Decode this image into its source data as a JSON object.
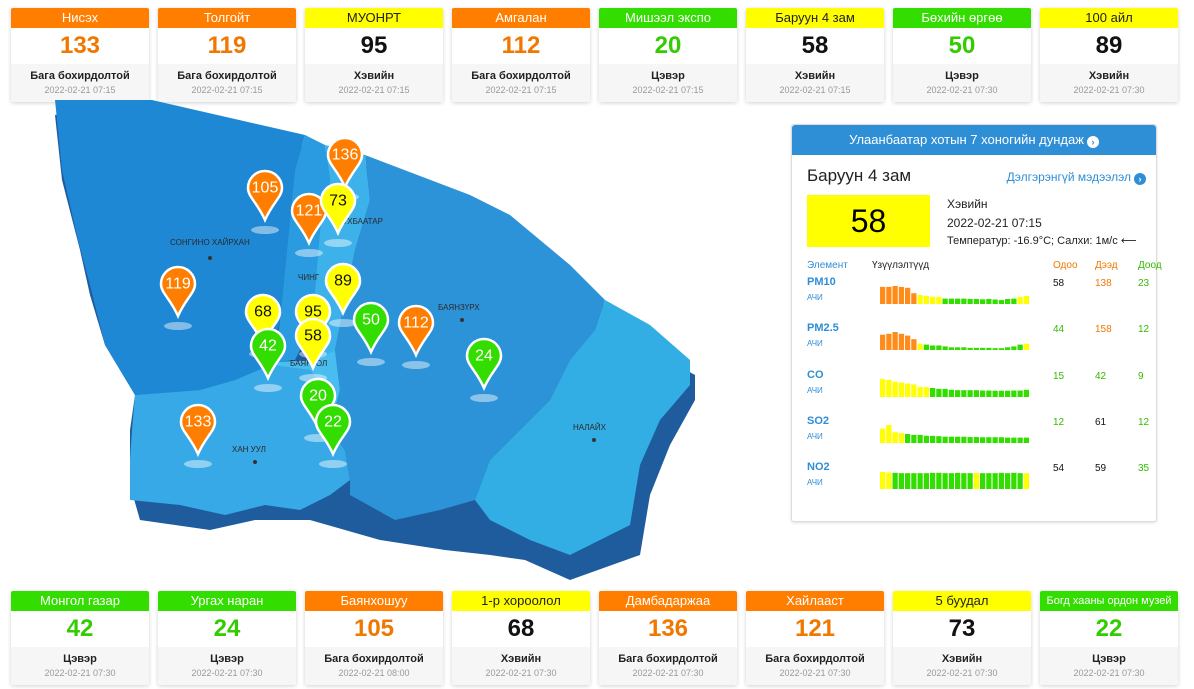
{
  "colors": {
    "good": "#33dd00",
    "moderate": "#ffff00",
    "unhealthy_sensitive": "#ff7e00",
    "accent": "#2e8ed6",
    "good_text": "#33cc00",
    "unhealthy_text": "#f07800",
    "moderate_text": "#111111"
  },
  "top_stations": [
    {
      "name": "Нисэх",
      "aqi": "133",
      "category": "Бага бохирдолтой",
      "time": "2022-02-21 07:15",
      "level": "orange"
    },
    {
      "name": "Толгойт",
      "aqi": "119",
      "category": "Бага бохирдолтой",
      "time": "2022-02-21 07:15",
      "level": "orange"
    },
    {
      "name": "МУОНРТ",
      "aqi": "95",
      "category": "Хэвийн",
      "time": "2022-02-21 07:15",
      "level": "yellow"
    },
    {
      "name": "Амгалан",
      "aqi": "112",
      "category": "Бага бохирдолтой",
      "time": "2022-02-21 07:15",
      "level": "orange"
    },
    {
      "name": "Мишээл экспо",
      "aqi": "20",
      "category": "Цэвэр",
      "time": "2022-02-21 07:15",
      "level": "green"
    },
    {
      "name": "Баруун 4 зам",
      "aqi": "58",
      "category": "Хэвийн",
      "time": "2022-02-21 07:15",
      "level": "yellow"
    },
    {
      "name": "Бөхийн өргөө",
      "aqi": "50",
      "category": "Цэвэр",
      "time": "2022-02-21 07:30",
      "level": "green"
    },
    {
      "name": "100 айл",
      "aqi": "89",
      "category": "Хэвийн",
      "time": "2022-02-21 07:30",
      "level": "yellow"
    }
  ],
  "bottom_stations": [
    {
      "name": "Монгол газар",
      "aqi": "42",
      "category": "Цэвэр",
      "time": "2022-02-21 07:30",
      "level": "green"
    },
    {
      "name": "Ургах наран",
      "aqi": "24",
      "category": "Цэвэр",
      "time": "2022-02-21 07:30",
      "level": "green"
    },
    {
      "name": "Баянхошуу",
      "aqi": "105",
      "category": "Бага бохирдолтой",
      "time": "2022-02-21 08:00",
      "level": "orange"
    },
    {
      "name": "1-р хороолол",
      "aqi": "68",
      "category": "Хэвийн",
      "time": "2022-02-21 07:30",
      "level": "yellow"
    },
    {
      "name": "Дамбадаржаа",
      "aqi": "136",
      "category": "Бага бохирдолтой",
      "time": "2022-02-21 07:30",
      "level": "orange"
    },
    {
      "name": "Хайлааст",
      "aqi": "121",
      "category": "Бага бохирдолтой",
      "time": "2022-02-21 07:30",
      "level": "orange"
    },
    {
      "name": "5 буудал",
      "aqi": "73",
      "category": "Хэвийн",
      "time": "2022-02-21 07:30",
      "level": "yellow"
    },
    {
      "name": "Богд хааны ордон музей",
      "aqi": "22",
      "category": "Цэвэр",
      "time": "2022-02-21 07:30",
      "level": "green"
    }
  ],
  "map": {
    "districts": [
      "СОНГИНО ХАЙРХАН",
      "ХАН УУЛ",
      "БАЯНЗҮРХ",
      "НАЛАЙХ",
      "ЧИНГ",
      "БАЯНГОЛ",
      "СҮХБААТАР"
    ],
    "markers": [
      {
        "aqi": "136",
        "level": "orange"
      },
      {
        "aqi": "105",
        "level": "orange"
      },
      {
        "aqi": "121",
        "level": "orange"
      },
      {
        "aqi": "73",
        "level": "yellow"
      },
      {
        "aqi": "89",
        "level": "yellow"
      },
      {
        "aqi": "119",
        "level": "orange"
      },
      {
        "aqi": "68",
        "level": "yellow"
      },
      {
        "aqi": "95",
        "level": "yellow"
      },
      {
        "aqi": "58",
        "level": "yellow"
      },
      {
        "aqi": "42",
        "level": "green"
      },
      {
        "aqi": "50",
        "level": "green"
      },
      {
        "aqi": "112",
        "level": "orange"
      },
      {
        "aqi": "24",
        "level": "green"
      },
      {
        "aqi": "20",
        "level": "green"
      },
      {
        "aqi": "22",
        "level": "green"
      },
      {
        "aqi": "133",
        "level": "orange"
      }
    ]
  },
  "panel": {
    "banner": "Улаанбаатар хотын 7 хоногийн дундаж",
    "station": "Баруун 4 зам",
    "more_link": "Дэлгэрэнгүй мэдээлэл",
    "aqi": "58",
    "category": "Хэвийн",
    "time": "2022-02-21 07:15",
    "weather": "Температур: -16.9°C; Салхи: 1м/с",
    "headers": {
      "element": "Элемент",
      "index": "Үзүүлэлтүүд",
      "now": "Одоо",
      "high": "Дээд",
      "low": "Доод"
    },
    "pollutants": [
      {
        "name": "PM10",
        "unit": "АЧИ",
        "now": "58",
        "high": "138",
        "low": "23",
        "now_level": "moderate",
        "high_level": "unhealthy",
        "low_level": "good",
        "history": [
          95,
          95,
          100,
          95,
          90,
          60,
          50,
          45,
          40,
          40,
          30,
          30,
          30,
          30,
          28,
          28,
          26,
          28,
          25,
          22,
          28,
          30,
          40,
          45
        ]
      },
      {
        "name": "PM2.5",
        "unit": "АЧИ",
        "now": "44",
        "high": "158",
        "low": "12",
        "now_level": "good",
        "high_level": "unhealthy",
        "low_level": "good",
        "history": [
          85,
          90,
          100,
          90,
          80,
          60,
          35,
          30,
          25,
          25,
          20,
          15,
          15,
          15,
          12,
          12,
          12,
          12,
          10,
          10,
          15,
          20,
          30,
          35
        ]
      },
      {
        "name": "CO",
        "unit": "АЧИ",
        "now": "15",
        "high": "42",
        "low": "9",
        "now_level": "good",
        "high_level": "good",
        "low_level": "good",
        "history": [
          100,
          95,
          85,
          80,
          75,
          70,
          55,
          55,
          50,
          45,
          45,
          40,
          38,
          38,
          38,
          38,
          36,
          36,
          35,
          35,
          35,
          36,
          36,
          40
        ]
      },
      {
        "name": "SO2",
        "unit": "АЧИ",
        "now": "12",
        "high": "61",
        "low": "12",
        "now_level": "good",
        "high_level": "moderate",
        "low_level": "good",
        "history": [
          80,
          100,
          60,
          55,
          50,
          45,
          45,
          40,
          40,
          38,
          35,
          35,
          35,
          35,
          33,
          33,
          32,
          32,
          32,
          32,
          30,
          30,
          30,
          30
        ]
      },
      {
        "name": "NO2",
        "unit": "АЧИ",
        "now": "54",
        "high": "59",
        "low": "35",
        "now_level": "moderate",
        "high_level": "moderate",
        "low_level": "good",
        "history": [
          95,
          92,
          90,
          88,
          88,
          88,
          88,
          88,
          90,
          90,
          88,
          88,
          90,
          88,
          88,
          90,
          88,
          88,
          88,
          90,
          88,
          90,
          88,
          88
        ],
        "history_levels": [
          "y",
          "y",
          "g",
          "g",
          "g",
          "g",
          "g",
          "g",
          "g",
          "g",
          "g",
          "g",
          "g",
          "g",
          "g",
          "y",
          "g",
          "g",
          "g",
          "g",
          "g",
          "g",
          "g",
          "y"
        ]
      }
    ]
  }
}
